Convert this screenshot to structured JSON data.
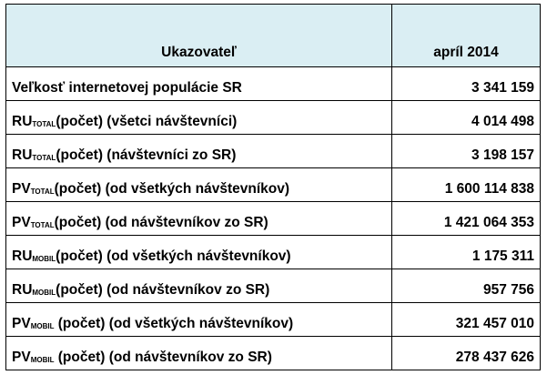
{
  "table": {
    "header": [
      "Ukazovateľ",
      "apríl 2014"
    ],
    "rows": [
      {
        "label": "Veľkosť internetovej populácie SR",
        "value": "3 341 159"
      },
      {
        "label": {
          "main": "RU",
          "sub": "TOTAL",
          "rest": "(počet) (všetci návštevníci)"
        },
        "value": "4 014 498"
      },
      {
        "label": {
          "main": "RU",
          "sub": "TOTAL",
          "rest": "(počet) (návštevníci zo SR)"
        },
        "value": "3 198 157"
      },
      {
        "label": {
          "main": "PV",
          "sub": "TOTAL",
          "rest": "(počet) (od všetkých návštevníkov)"
        },
        "value": "1 600 114 838"
      },
      {
        "label": {
          "main": "PV",
          "sub": "TOTAL",
          "rest": "(počet) (od návštevníkov zo SR)"
        },
        "value": "1 421 064 353"
      },
      {
        "label": {
          "main": "RU",
          "sub": "MOBIL",
          "rest": "(počet) (od všetkých návštevníkov)"
        },
        "value": "1 175 311"
      },
      {
        "label": {
          "main": "RU",
          "sub": "MOBIL",
          "rest": "(počet) (od návštevníkov zo SR)"
        },
        "value": "957 756"
      },
      {
        "label": {
          "main": "PV",
          "sub": "MOBIL",
          "rest": " (počet) (od všetkých návštevníkov)"
        },
        "value": "321 457 010"
      },
      {
        "label": {
          "main": "PV",
          "sub": "MOBIL",
          "rest": " (počet) (od návštevníkov zo SR)"
        },
        "value": "278 437 626"
      }
    ]
  }
}
